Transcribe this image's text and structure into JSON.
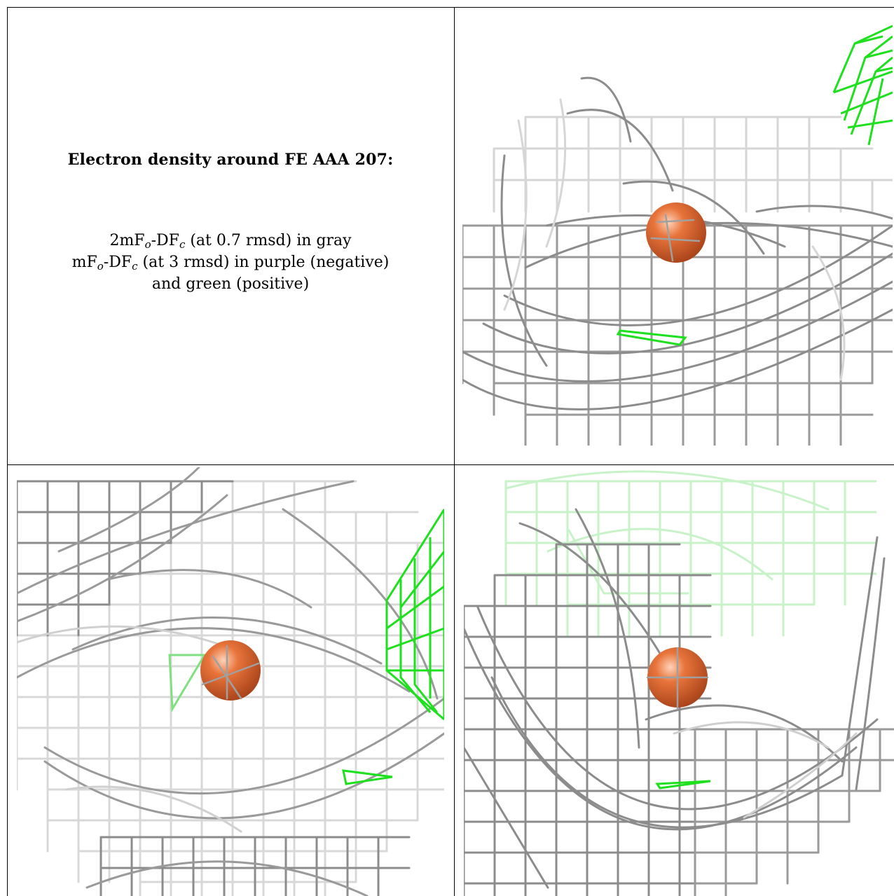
{
  "caption": {
    "title": "Electron density around FE AAA 207:",
    "line1_pre": "2mF",
    "line1_sub1": "o",
    "line1_mid": "-DF",
    "line1_sub2": "c",
    "line1_post": " (at 0.7 rmsd) in gray",
    "line2_pre": "mF",
    "line2_sub1": "o",
    "line2_mid": "-DF",
    "line2_sub2": "c",
    "line2_post": " (at 3 rmsd) in purple (negative)",
    "line3": "and green (positive)"
  },
  "colors": {
    "density_gray": "#8c8c8c",
    "density_light": "#d8d8d8",
    "difference_positive": "#1fe01f",
    "atom_fe": "#e8743b"
  },
  "panels": [
    {
      "name": "view-top-right",
      "atom": "FE"
    },
    {
      "name": "view-bottom-left",
      "atom": "FE"
    },
    {
      "name": "view-bottom-right",
      "atom": "FE"
    }
  ]
}
